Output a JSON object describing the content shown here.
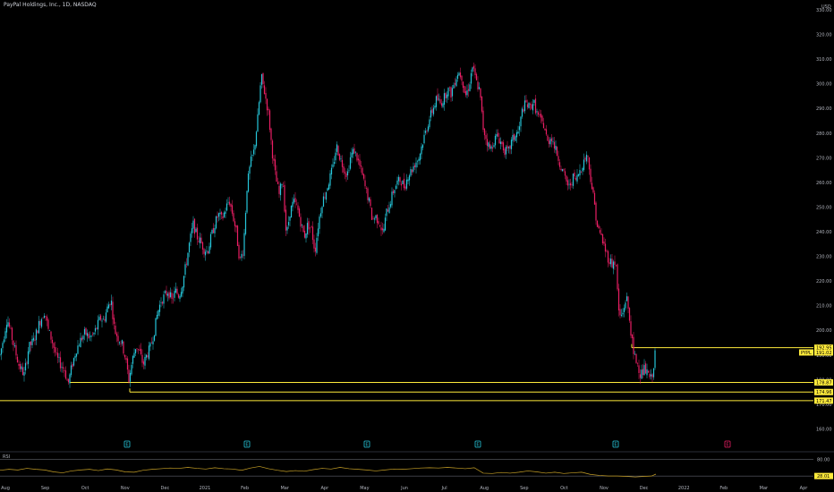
{
  "header": {
    "title": "PayPal Holdings, Inc., 1D, NASDAQ"
  },
  "axis": {
    "currency": "USD"
  },
  "colors": {
    "up": "#26c6da",
    "down": "#e91e63",
    "level": "#ffeb3b",
    "rsi": "#c9a227",
    "grid_text": "#b2b5be",
    "background": "#000000"
  },
  "chart_data": {
    "type": "candlestick",
    "title": "PayPal Holdings, Inc., 1D, NASDAQ",
    "ylabel": "USD",
    "ylim": [
      154,
      334
    ],
    "y_ticks": [
      "160.00",
      "170.00",
      "180.00",
      "190.00",
      "200.00",
      "210.00",
      "220.00",
      "230.00",
      "240.00",
      "250.00",
      "260.00",
      "270.00",
      "280.00",
      "290.00",
      "300.00",
      "310.00",
      "320.00",
      "330.00"
    ],
    "x_ticks": [
      {
        "label": "Aug"
      },
      {
        "label": "Sep"
      },
      {
        "label": "Oct"
      },
      {
        "label": "Nov"
      },
      {
        "label": "Dec"
      },
      {
        "label": "2021"
      },
      {
        "label": "Feb"
      },
      {
        "label": "Mar"
      },
      {
        "label": "Apr"
      },
      {
        "label": "May"
      },
      {
        "label": "Jun"
      },
      {
        "label": "Jul"
      },
      {
        "label": "Aug"
      },
      {
        "label": "Sep"
      },
      {
        "label": "Oct"
      },
      {
        "label": "Nov"
      },
      {
        "label": "Dec"
      },
      {
        "label": "2022"
      },
      {
        "label": "Feb"
      },
      {
        "label": "Mar"
      },
      {
        "label": "Apr"
      }
    ],
    "price_path": [
      [
        0,
        190
      ],
      [
        4,
        197
      ],
      [
        8,
        205
      ],
      [
        12,
        199
      ],
      [
        16,
        193
      ],
      [
        21,
        186
      ],
      [
        27,
        182
      ],
      [
        32,
        193
      ],
      [
        38,
        196
      ],
      [
        44,
        203
      ],
      [
        50,
        208
      ],
      [
        54,
        200
      ],
      [
        58,
        196
      ],
      [
        63,
        189
      ],
      [
        68,
        186
      ],
      [
        72,
        184
      ],
      [
        76,
        178
      ],
      [
        80,
        185
      ],
      [
        85,
        192
      ],
      [
        90,
        196
      ],
      [
        95,
        199
      ],
      [
        100,
        197
      ],
      [
        104,
        198
      ],
      [
        108,
        201
      ],
      [
        112,
        205
      ],
      [
        116,
        204
      ],
      [
        120,
        209
      ],
      [
        124,
        213
      ],
      [
        128,
        200
      ],
      [
        132,
        197
      ],
      [
        136,
        195
      ],
      [
        140,
        189
      ],
      [
        144,
        180
      ],
      [
        148,
        188
      ],
      [
        152,
        194
      ],
      [
        156,
        191
      ],
      [
        160,
        186
      ],
      [
        164,
        190
      ],
      [
        168,
        193
      ],
      [
        172,
        199
      ],
      [
        176,
        207
      ],
      [
        180,
        212
      ],
      [
        184,
        214
      ],
      [
        188,
        216
      ],
      [
        192,
        212
      ],
      [
        196,
        216
      ],
      [
        200,
        214
      ],
      [
        204,
        219
      ],
      [
        208,
        227
      ],
      [
        212,
        236
      ],
      [
        216,
        243
      ],
      [
        220,
        238
      ],
      [
        224,
        236
      ],
      [
        228,
        233
      ],
      [
        232,
        232
      ],
      [
        236,
        238
      ],
      [
        240,
        243
      ],
      [
        244,
        247
      ],
      [
        248,
        245
      ],
      [
        252,
        249
      ],
      [
        256,
        253
      ],
      [
        260,
        247
      ],
      [
        264,
        240
      ],
      [
        268,
        228
      ],
      [
        272,
        233
      ],
      [
        276,
        258
      ],
      [
        280,
        268
      ],
      [
        284,
        273
      ],
      [
        288,
        286
      ],
      [
        292,
        303
      ],
      [
        296,
        296
      ],
      [
        300,
        288
      ],
      [
        304,
        273
      ],
      [
        308,
        262
      ],
      [
        312,
        255
      ],
      [
        316,
        262
      ],
      [
        320,
        238
      ],
      [
        324,
        248
      ],
      [
        328,
        252
      ],
      [
        332,
        250
      ],
      [
        336,
        244
      ],
      [
        340,
        238
      ],
      [
        344,
        243
      ],
      [
        348,
        241
      ],
      [
        352,
        232
      ],
      [
        356,
        244
      ],
      [
        360,
        252
      ],
      [
        364,
        256
      ],
      [
        368,
        261
      ],
      [
        372,
        266
      ],
      [
        376,
        275
      ],
      [
        380,
        270
      ],
      [
        384,
        266
      ],
      [
        388,
        263
      ],
      [
        392,
        271
      ],
      [
        396,
        273
      ],
      [
        400,
        269
      ],
      [
        404,
        264
      ],
      [
        408,
        258
      ],
      [
        412,
        253
      ],
      [
        416,
        245
      ],
      [
        420,
        246
      ],
      [
        424,
        244
      ],
      [
        428,
        239
      ],
      [
        432,
        248
      ],
      [
        436,
        252
      ],
      [
        440,
        257
      ],
      [
        444,
        260
      ],
      [
        448,
        261
      ],
      [
        452,
        258
      ],
      [
        456,
        263
      ],
      [
        460,
        265
      ],
      [
        464,
        268
      ],
      [
        468,
        270
      ],
      [
        472,
        276
      ],
      [
        476,
        281
      ],
      [
        480,
        286
      ],
      [
        484,
        290
      ],
      [
        488,
        294
      ],
      [
        492,
        292
      ],
      [
        496,
        294
      ],
      [
        500,
        298
      ],
      [
        504,
        296
      ],
      [
        508,
        301
      ],
      [
        512,
        305
      ],
      [
        516,
        303
      ],
      [
        520,
        295
      ],
      [
        524,
        299
      ],
      [
        528,
        307
      ],
      [
        532,
        301
      ],
      [
        536,
        297
      ],
      [
        540,
        282
      ],
      [
        544,
        277
      ],
      [
        548,
        273
      ],
      [
        552,
        277
      ],
      [
        556,
        279
      ],
      [
        560,
        276
      ],
      [
        564,
        273
      ],
      [
        568,
        272
      ],
      [
        572,
        277
      ],
      [
        576,
        279
      ],
      [
        580,
        281
      ],
      [
        584,
        290
      ],
      [
        588,
        292
      ],
      [
        592,
        290
      ],
      [
        596,
        293
      ],
      [
        600,
        288
      ],
      [
        604,
        285
      ],
      [
        608,
        283
      ],
      [
        612,
        276
      ],
      [
        616,
        279
      ],
      [
        620,
        274
      ],
      [
        624,
        270
      ],
      [
        628,
        265
      ],
      [
        632,
        261
      ],
      [
        636,
        258
      ],
      [
        640,
        262
      ],
      [
        644,
        261
      ],
      [
        648,
        265
      ],
      [
        652,
        268
      ],
      [
        656,
        272
      ],
      [
        660,
        262
      ],
      [
        664,
        252
      ],
      [
        668,
        241
      ],
      [
        672,
        238
      ],
      [
        676,
        233
      ],
      [
        680,
        229
      ],
      [
        684,
        227
      ],
      [
        688,
        228
      ],
      [
        692,
        205
      ],
      [
        696,
        207
      ],
      [
        700,
        214
      ],
      [
        704,
        203
      ],
      [
        708,
        190
      ],
      [
        712,
        187
      ],
      [
        716,
        182
      ],
      [
        720,
        184
      ],
      [
        724,
        182
      ],
      [
        728,
        180
      ],
      [
        732,
        190
      ]
    ],
    "rsi_path": [
      [
        0,
        46
      ],
      [
        10,
        49
      ],
      [
        20,
        47
      ],
      [
        30,
        52
      ],
      [
        40,
        49
      ],
      [
        50,
        47
      ],
      [
        60,
        41
      ],
      [
        70,
        38
      ],
      [
        80,
        44
      ],
      [
        90,
        47
      ],
      [
        100,
        49
      ],
      [
        110,
        45
      ],
      [
        120,
        50
      ],
      [
        130,
        47
      ],
      [
        140,
        41
      ],
      [
        150,
        40
      ],
      [
        160,
        46
      ],
      [
        170,
        49
      ],
      [
        180,
        51
      ],
      [
        190,
        53
      ],
      [
        200,
        52
      ],
      [
        210,
        55
      ],
      [
        220,
        52
      ],
      [
        230,
        50
      ],
      [
        240,
        54
      ],
      [
        250,
        51
      ],
      [
        260,
        50
      ],
      [
        270,
        46
      ],
      [
        280,
        53
      ],
      [
        290,
        58
      ],
      [
        300,
        51
      ],
      [
        310,
        46
      ],
      [
        320,
        42
      ],
      [
        330,
        45
      ],
      [
        340,
        43
      ],
      [
        350,
        48
      ],
      [
        360,
        52
      ],
      [
        370,
        50
      ],
      [
        380,
        55
      ],
      [
        390,
        51
      ],
      [
        400,
        49
      ],
      [
        410,
        47
      ],
      [
        420,
        44
      ],
      [
        430,
        47
      ],
      [
        440,
        50
      ],
      [
        450,
        49
      ],
      [
        460,
        51
      ],
      [
        470,
        53
      ],
      [
        480,
        54
      ],
      [
        490,
        53
      ],
      [
        500,
        55
      ],
      [
        510,
        53
      ],
      [
        520,
        51
      ],
      [
        530,
        54
      ],
      [
        540,
        37
      ],
      [
        550,
        36
      ],
      [
        560,
        39
      ],
      [
        570,
        37
      ],
      [
        580,
        40
      ],
      [
        590,
        44
      ],
      [
        600,
        41
      ],
      [
        610,
        37
      ],
      [
        620,
        40
      ],
      [
        630,
        36
      ],
      [
        640,
        38
      ],
      [
        650,
        40
      ],
      [
        660,
        33
      ],
      [
        670,
        30
      ],
      [
        680,
        28
      ],
      [
        690,
        28
      ],
      [
        700,
        27
      ],
      [
        710,
        25
      ],
      [
        720,
        27
      ],
      [
        728,
        28.01
      ],
      [
        733,
        34
      ]
    ],
    "levels": [
      {
        "label": "192.95",
        "value": 192.95,
        "x_start": 706
      },
      {
        "label": "178.87",
        "value": 178.87,
        "x_start": 78
      },
      {
        "label": "174.96",
        "value": 174.96,
        "x_start": 145
      },
      {
        "label": "171.47",
        "value": 171.47,
        "x_start": 0
      }
    ],
    "price_tag": {
      "symbol": "PYPL",
      "value": "191.02",
      "price": 191.02
    },
    "events": [
      {
        "label": "E",
        "x": 142,
        "kind": "earnings"
      },
      {
        "label": "E",
        "x": 276,
        "kind": "earnings"
      },
      {
        "label": "E",
        "x": 410,
        "kind": "earnings"
      },
      {
        "label": "E",
        "x": 534,
        "kind": "earnings"
      },
      {
        "label": "E",
        "x": 688,
        "kind": "earnings"
      },
      {
        "label": "E",
        "x": 813,
        "kind": "upcoming"
      }
    ],
    "rsi": {
      "label": "RSI",
      "upper": "80.00",
      "value": "28.01"
    }
  }
}
